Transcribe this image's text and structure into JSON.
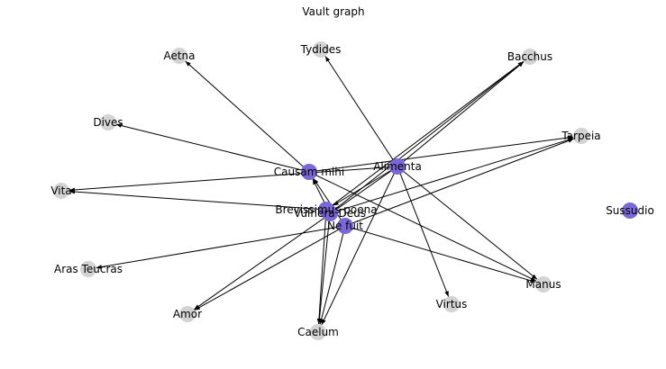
{
  "title": "Vault graph",
  "colors": {
    "highlight": "#7b68d6",
    "default": "#d3d3d3",
    "edge": "#000000"
  },
  "nodes": [
    {
      "id": "Tydides",
      "label": "Tydides",
      "highlight": false
    },
    {
      "id": "Aetna",
      "label": "Aetna",
      "highlight": false
    },
    {
      "id": "Bacchus",
      "label": "Bacchus",
      "highlight": false
    },
    {
      "id": "Dives",
      "label": "Dives",
      "highlight": false
    },
    {
      "id": "Tarpeia",
      "label": "Tarpeia",
      "highlight": false
    },
    {
      "id": "Alimenta",
      "label": "Alimenta",
      "highlight": true
    },
    {
      "id": "Causam mihi",
      "label": "Causam mihi",
      "highlight": true
    },
    {
      "id": "Vita",
      "label": "Vita",
      "highlight": false
    },
    {
      "id": "Brevissimus poena",
      "label": "Brevissimus poena",
      "highlight": true
    },
    {
      "id": "Vulnera Deus",
      "label": "Vulnera Deus",
      "highlight": true
    },
    {
      "id": "Ne fuit",
      "label": "Ne fuit",
      "highlight": true
    },
    {
      "id": "Sussudio",
      "label": "Sussudio",
      "highlight": true
    },
    {
      "id": "Aras Teucras",
      "label": "Aras Teucras",
      "highlight": false
    },
    {
      "id": "Manus",
      "label": "Manus",
      "highlight": false
    },
    {
      "id": "Virtus",
      "label": "Virtus",
      "highlight": false
    },
    {
      "id": "Amor",
      "label": "Amor",
      "highlight": false
    },
    {
      "id": "Caelum",
      "label": "Caelum",
      "highlight": false
    }
  ],
  "edges": [
    {
      "source": "Alimenta",
      "target": "Tydides"
    },
    {
      "source": "Alimenta",
      "target": "Bacchus"
    },
    {
      "source": "Alimenta",
      "target": "Virtus"
    },
    {
      "source": "Alimenta",
      "target": "Manus"
    },
    {
      "source": "Alimenta",
      "target": "Vita"
    },
    {
      "source": "Alimenta",
      "target": "Brevissimus poena"
    },
    {
      "source": "Alimenta",
      "target": "Caelum"
    },
    {
      "source": "Alimenta",
      "target": "Amor"
    },
    {
      "source": "Causam mihi",
      "target": "Aetna"
    },
    {
      "source": "Causam mihi",
      "target": "Dives"
    },
    {
      "source": "Causam mihi",
      "target": "Tarpeia"
    },
    {
      "source": "Causam mihi",
      "target": "Manus"
    },
    {
      "source": "Brevissimus poena",
      "target": "Bacchus"
    },
    {
      "source": "Brevissimus poena",
      "target": "Vita"
    },
    {
      "source": "Brevissimus poena",
      "target": "Caelum"
    },
    {
      "source": "Vulnera Deus",
      "target": "Bacchus"
    },
    {
      "source": "Vulnera Deus",
      "target": "Tarpeia"
    },
    {
      "source": "Vulnera Deus",
      "target": "Causam mihi"
    },
    {
      "source": "Vulnera Deus",
      "target": "Caelum"
    },
    {
      "source": "Ne fuit",
      "target": "Aras Teucras"
    },
    {
      "source": "Ne fuit",
      "target": "Manus"
    },
    {
      "source": "Ne fuit",
      "target": "Caelum"
    },
    {
      "source": "Ne fuit",
      "target": "Amor"
    },
    {
      "source": "Ne fuit",
      "target": "Tarpeia"
    },
    {
      "source": "Ne fuit",
      "target": "Causam mihi"
    }
  ]
}
